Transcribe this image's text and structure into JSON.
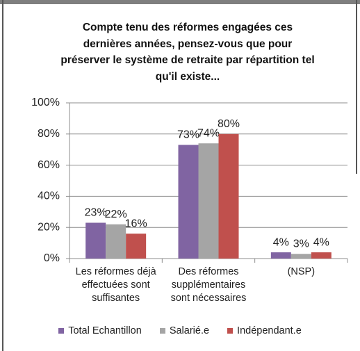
{
  "chart_data": {
    "type": "bar",
    "title": "Compte tenu des réformes engagées ces dernières années, pensez-vous que pour préserver le système de retraite par répartition tel qu'il existe...",
    "categories": [
      "Les réformes déjà effectuées sont suffisantes",
      "Des réformes supplémentaires sont nécessaires",
      "(NSP)"
    ],
    "series": [
      {
        "name": "Total Echantillon",
        "color": "#8064a2",
        "values": [
          23,
          73,
          4
        ],
        "value_labels": [
          "23%",
          "73%",
          "4%"
        ]
      },
      {
        "name": "Salarié.e",
        "color": "#a5a5a5",
        "values": [
          22,
          74,
          3
        ],
        "value_labels": [
          "22%",
          "74%",
          "3%"
        ]
      },
      {
        "name": "Indépendant.e",
        "color": "#c0504d",
        "values": [
          16,
          80,
          4
        ],
        "value_labels": [
          "16%",
          "80%",
          "4%"
        ]
      }
    ],
    "ylim": [
      0,
      100
    ],
    "yticks": [
      {
        "value": 0,
        "label": "0%"
      },
      {
        "value": 20,
        "label": "20%"
      },
      {
        "value": 40,
        "label": "40%"
      },
      {
        "value": 60,
        "label": "60%"
      },
      {
        "value": 80,
        "label": "80%"
      },
      {
        "value": 100,
        "label": "100%"
      }
    ],
    "grid": true,
    "legend": "bottom"
  }
}
